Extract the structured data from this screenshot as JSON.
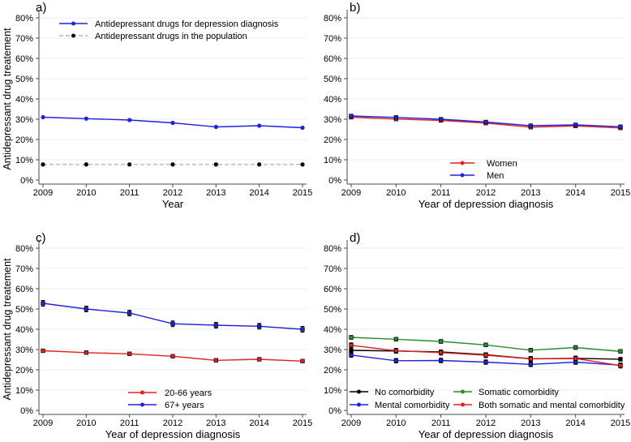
{
  "figure": {
    "background": "#ffffff",
    "grid_color": "#ececec",
    "axis_color": "#4a4a4a",
    "error_bar_color": "#000000"
  },
  "chart_data": [
    {
      "id": "a",
      "panel_label": "a)",
      "type": "line",
      "x": [
        2009,
        2010,
        2011,
        2012,
        2013,
        2014,
        2015
      ],
      "xlabel": "Year",
      "ylabel": "Antidepressant drug treatement",
      "ylim": [
        0,
        80
      ],
      "ytick_step": 10,
      "ytick_suffix": "%",
      "grid": true,
      "legend_position": "top-left-inside",
      "series": [
        {
          "name": "Antidepressant drugs for depression diagnosis",
          "color": "#2222dd",
          "marker": "circle",
          "marker_color": "#2222dd",
          "dash": null,
          "err": null,
          "values": [
            31.0,
            30.3,
            29.6,
            28.2,
            26.2,
            26.8,
            25.8
          ]
        },
        {
          "name": "Antidepressant drugs in the population",
          "color": "#a3bed5",
          "marker": "circle",
          "marker_color": "#000000",
          "dash": "5,3",
          "err": null,
          "values": [
            7.7,
            7.7,
            7.7,
            7.7,
            7.7,
            7.7,
            7.7
          ]
        }
      ]
    },
    {
      "id": "b",
      "panel_label": "b)",
      "type": "line",
      "x": [
        2009,
        2010,
        2011,
        2012,
        2013,
        2014,
        2015
      ],
      "xlabel": "Year of depression diagnosis",
      "ylabel": null,
      "ylim": [
        0,
        80
      ],
      "ytick_step": 10,
      "ytick_suffix": "%",
      "grid": true,
      "legend_position": "bottom-center-inside",
      "series": [
        {
          "name": "Women",
          "color": "#e02222",
          "marker": "square",
          "marker_color": "#e02222",
          "dash": null,
          "err": 0.5,
          "values": [
            31.0,
            30.1,
            29.4,
            28.1,
            26.1,
            26.7,
            25.7
          ]
        },
        {
          "name": "Men",
          "color": "#2222dd",
          "marker": "square",
          "marker_color": "#2222dd",
          "dash": null,
          "err": 0.5,
          "values": [
            31.6,
            30.9,
            30.0,
            28.6,
            26.8,
            27.2,
            26.3
          ]
        }
      ]
    },
    {
      "id": "c",
      "panel_label": "c)",
      "type": "line",
      "x": [
        2009,
        2010,
        2011,
        2012,
        2013,
        2014,
        2015
      ],
      "xlabel": "Year of depression diagnosis",
      "ylabel": "Antidepressant drug treatement",
      "ylim": [
        0,
        80
      ],
      "ytick_step": 10,
      "ytick_suffix": "%",
      "grid": true,
      "legend_position": "bottom-center-inside",
      "series": [
        {
          "name": "20-66 years",
          "color": "#e02222",
          "marker": "square",
          "marker_color": "#e02222",
          "dash": null,
          "err": 0.5,
          "values": [
            29.4,
            28.5,
            27.9,
            26.7,
            24.7,
            25.2,
            24.3
          ]
        },
        {
          "name": "67+ years",
          "color": "#2222dd",
          "marker": "square",
          "marker_color": "#2222dd",
          "dash": null,
          "err": 1.4,
          "values": [
            52.8,
            50.0,
            48.0,
            42.7,
            42.0,
            41.5,
            40.0
          ]
        }
      ]
    },
    {
      "id": "d",
      "panel_label": "d)",
      "type": "line",
      "x": [
        2009,
        2010,
        2011,
        2012,
        2013,
        2014,
        2015
      ],
      "xlabel": "Year of depression diagnosis",
      "ylabel": null,
      "ylim": [
        0,
        80
      ],
      "ytick_step": 10,
      "ytick_suffix": "%",
      "grid": true,
      "legend_position": "bottom-two-column-inside",
      "series": [
        {
          "name": "No comorbidity",
          "color": "#000000",
          "marker": "square",
          "marker_color": "#000000",
          "dash": null,
          "err": 0.9,
          "values": [
            29.6,
            29.3,
            28.8,
            27.5,
            25.5,
            25.7,
            25.2
          ]
        },
        {
          "name": "Somatic comorbidity",
          "color": "#2a8c2a",
          "marker": "square",
          "marker_color": "#2a8c2a",
          "dash": null,
          "err": 0.9,
          "values": [
            36.0,
            35.1,
            34.0,
            32.3,
            29.7,
            31.0,
            29.1
          ]
        },
        {
          "name": "Mental comorbidity",
          "color": "#2222dd",
          "marker": "square",
          "marker_color": "#2222dd",
          "dash": null,
          "err": 1.1,
          "values": [
            27.3,
            24.5,
            24.6,
            23.8,
            22.7,
            23.8,
            22.3
          ]
        },
        {
          "name": "Both somatic and mental comorbidity",
          "color": "#e02222",
          "marker": "square",
          "marker_color": "#e02222",
          "dash": null,
          "err": 1.2,
          "values": [
            32.1,
            29.4,
            28.5,
            27.2,
            25.4,
            25.6,
            22.1
          ]
        }
      ]
    }
  ]
}
